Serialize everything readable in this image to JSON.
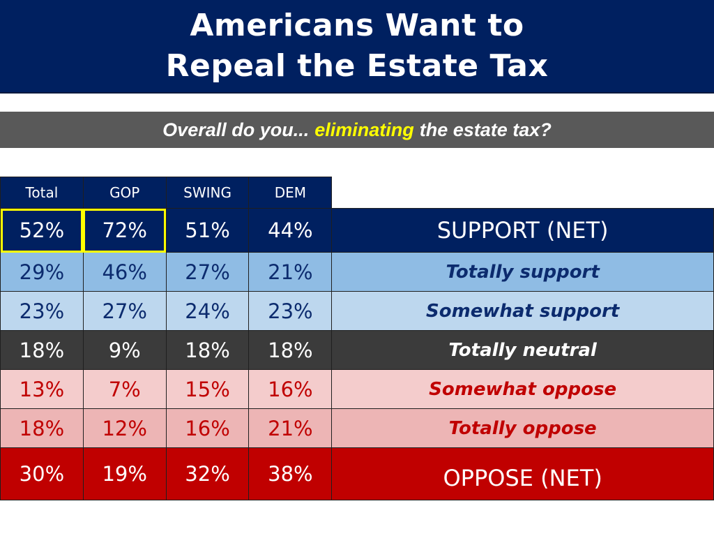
{
  "title": {
    "line1": "Americans Want to",
    "line2": "Repeal the Estate Tax"
  },
  "question": {
    "before": "Overall do you...",
    "highlight": "eliminating",
    "after": "the estate tax?"
  },
  "colors": {
    "header_navy": "#002060",
    "highlight_yellow": "#ffff00",
    "oppose_red": "#c00000"
  },
  "table": {
    "columns": [
      "Total",
      "GOP",
      "SWING",
      "DEM"
    ],
    "rows": [
      {
        "label": "SUPPORT (NET)",
        "values": [
          "52%",
          "72%",
          "51%",
          "44%"
        ]
      },
      {
        "label": "Totally support",
        "values": [
          "29%",
          "46%",
          "27%",
          "21%"
        ]
      },
      {
        "label": "Somewhat support",
        "values": [
          "23%",
          "27%",
          "24%",
          "23%"
        ]
      },
      {
        "label": "Totally neutral",
        "values": [
          "18%",
          "9%",
          "18%",
          "18%"
        ]
      },
      {
        "label": "Somewhat oppose",
        "values": [
          "13%",
          "7%",
          "15%",
          "16%"
        ]
      },
      {
        "label": "Totally oppose",
        "values": [
          "18%",
          "12%",
          "16%",
          "21%"
        ]
      },
      {
        "label": "OPPOSE (NET)",
        "values": [
          "30%",
          "19%",
          "32%",
          "38%"
        ]
      }
    ]
  }
}
